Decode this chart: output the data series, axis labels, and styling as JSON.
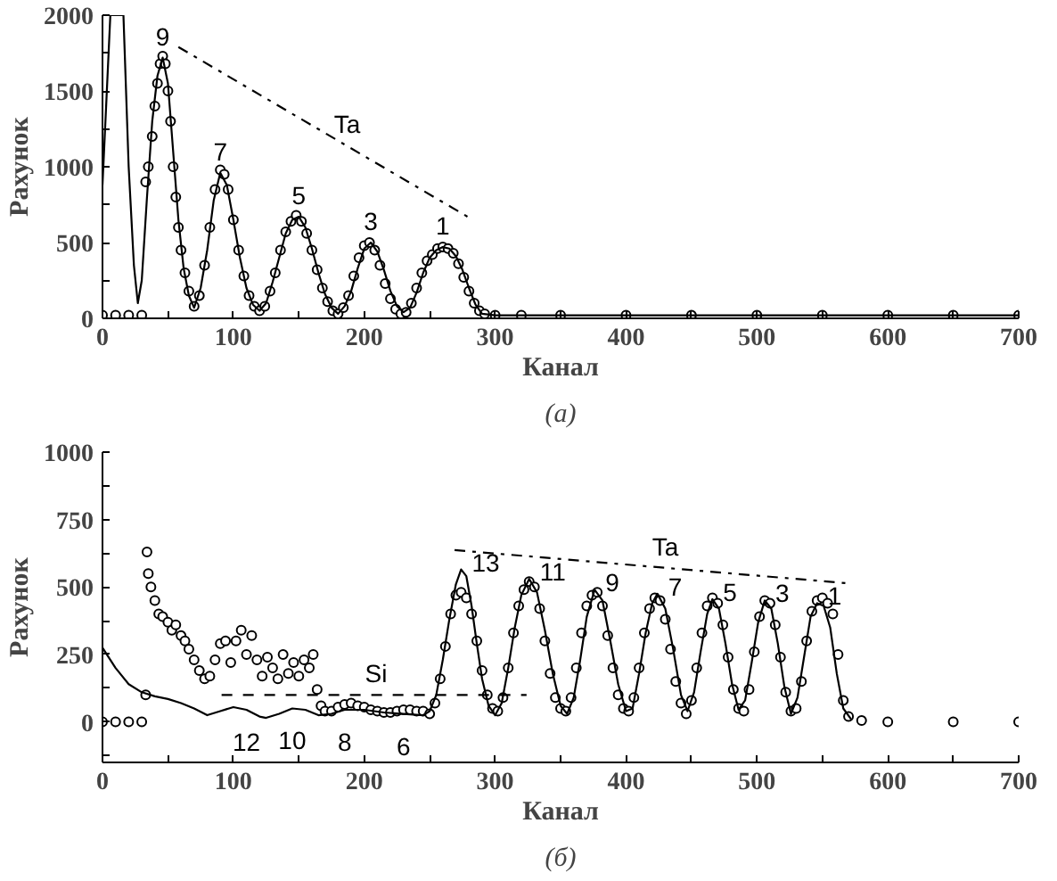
{
  "chart_data": [
    {
      "type": "scatter",
      "xlabel": "Канал",
      "ylabel": "Рахунок",
      "xlim": [
        0,
        700
      ],
      "ylim": [
        0,
        2000
      ],
      "xticks": [
        0,
        {
          "value": 50,
          "label": null
        },
        100,
        {
          "value": 150,
          "label": null
        },
        200,
        {
          "value": 250,
          "label": null
        },
        300,
        {
          "value": 350,
          "label": null
        },
        400,
        {
          "value": 450,
          "label": null
        },
        500,
        {
          "value": 550,
          "label": null
        },
        600,
        {
          "value": 650,
          "label": null
        },
        700
      ],
      "yticks": [
        0,
        {
          "value": 250,
          "label": null
        },
        500,
        {
          "value": 750,
          "label": null
        },
        1000,
        {
          "value": 1250,
          "label": null
        },
        1500,
        {
          "value": 1750,
          "label": null
        },
        2000
      ],
      "series": [
        {
          "marker": "circle",
          "color": "#000000",
          "x": [
            0,
            10,
            20,
            30,
            33,
            35,
            38,
            40,
            42,
            44,
            46,
            48,
            50,
            52,
            54,
            56,
            58,
            60,
            63,
            66,
            70,
            74,
            78,
            82,
            86,
            90,
            93,
            96,
            100,
            104,
            108,
            112,
            116,
            120,
            124,
            128,
            132,
            136,
            140,
            144,
            148,
            152,
            156,
            160,
            164,
            168,
            172,
            176,
            180,
            184,
            188,
            192,
            196,
            200,
            204,
            208,
            212,
            216,
            220,
            224,
            228,
            232,
            236,
            240,
            244,
            248,
            252,
            256,
            260,
            264,
            268,
            272,
            276,
            280,
            284,
            288,
            292,
            300,
            320,
            350,
            400,
            450,
            500,
            550,
            600,
            650,
            700
          ],
          "values": [
            20,
            20,
            20,
            20,
            900,
            1000,
            1200,
            1400,
            1550,
            1680,
            1730,
            1680,
            1500,
            1300,
            1000,
            800,
            600,
            450,
            300,
            180,
            80,
            150,
            350,
            600,
            850,
            980,
            950,
            850,
            650,
            450,
            280,
            150,
            80,
            50,
            80,
            180,
            300,
            450,
            570,
            640,
            680,
            640,
            560,
            450,
            320,
            200,
            110,
            50,
            30,
            70,
            150,
            280,
            400,
            480,
            500,
            450,
            350,
            230,
            130,
            60,
            30,
            40,
            100,
            200,
            300,
            380,
            420,
            460,
            470,
            460,
            430,
            360,
            270,
            180,
            100,
            50,
            30,
            20,
            20,
            20,
            20,
            20,
            20,
            20,
            20,
            20,
            20
          ]
        },
        {
          "type": "line",
          "line_style": "solid",
          "color": "#000000",
          "x": [
            0,
            6,
            16,
            20,
            24,
            27,
            30,
            34,
            38,
            42,
            46,
            50,
            54,
            58,
            62,
            66,
            70,
            75,
            80,
            85,
            90,
            95,
            100,
            105,
            110,
            115,
            120,
            125,
            130,
            135,
            140,
            145,
            150,
            155,
            160,
            165,
            170,
            175,
            180,
            185,
            190,
            195,
            200,
            205,
            210,
            215,
            220,
            225,
            230,
            235,
            240,
            245,
            250,
            255,
            260,
            265,
            270,
            275,
            280,
            285,
            290,
            300,
            700
          ],
          "values": [
            880,
            2000,
            2000,
            1000,
            350,
            100,
            250,
            800,
            1300,
            1600,
            1720,
            1550,
            1100,
            650,
            330,
            150,
            70,
            200,
            450,
            780,
            960,
            880,
            650,
            400,
            200,
            90,
            50,
            100,
            240,
            400,
            560,
            650,
            670,
            600,
            460,
            300,
            160,
            70,
            30,
            80,
            180,
            330,
            460,
            500,
            440,
            320,
            180,
            80,
            40,
            70,
            170,
            300,
            400,
            450,
            470,
            460,
            410,
            320,
            200,
            90,
            30,
            20,
            20
          ]
        },
        {
          "type": "line",
          "line_style": "dashdot",
          "color": "#000000",
          "x": [
            58,
            281
          ],
          "values": [
            1790,
            660
          ]
        }
      ],
      "annotations": [
        {
          "text": "Ta",
          "x": 187,
          "y": 1140
        },
        {
          "text": "9",
          "x": 46,
          "y": 1720
        },
        {
          "text": "7",
          "x": 90,
          "y": 960
        },
        {
          "text": "5",
          "x": 150,
          "y": 670
        },
        {
          "text": "3",
          "x": 205,
          "y": 500
        },
        {
          "text": "1",
          "x": 260,
          "y": 470
        },
        "(а)"
      ]
    },
    {
      "type": "scatter",
      "xlabel": "Канал",
      "ylabel": "Рахунок",
      "xlim": [
        0,
        700
      ],
      "ylim": [
        -150,
        1000
      ],
      "xticks": [
        0,
        {
          "value": 50,
          "label": null
        },
        100,
        {
          "value": 150,
          "label": null
        },
        200,
        {
          "value": 250,
          "label": null
        },
        300,
        {
          "value": 350,
          "label": null
        },
        400,
        {
          "value": 450,
          "label": null
        },
        500,
        {
          "value": 550,
          "label": null
        },
        600,
        {
          "value": 650,
          "label": null
        },
        700
      ],
      "yticks": [
        {
          "value": -125,
          "label": null
        },
        0,
        {
          "value": 125,
          "label": null
        },
        250,
        {
          "value": 375,
          "label": null
        },
        500,
        {
          "value": 625,
          "label": null
        },
        750,
        {
          "value": 875,
          "label": null
        },
        1000
      ],
      "series": [
        {
          "marker": "circle",
          "color": "#000000",
          "x": [
            0,
            10,
            20,
            30,
            33,
            34,
            35,
            37,
            40,
            43,
            46,
            50,
            53,
            56,
            60,
            63,
            66,
            70,
            74,
            78,
            82,
            86,
            90,
            94,
            98,
            102,
            106,
            110,
            114,
            118,
            122,
            126,
            130,
            134,
            138,
            142,
            146,
            150,
            154,
            158,
            161,
            164,
            167,
            170,
            175,
            180,
            185,
            190,
            195,
            200,
            205,
            210,
            215,
            220,
            225,
            230,
            235,
            240,
            245,
            250,
            254,
            258,
            262,
            266,
            270,
            274,
            278,
            282,
            286,
            290,
            294,
            298,
            302,
            306,
            310,
            314,
            318,
            322,
            326,
            330,
            334,
            338,
            342,
            346,
            350,
            354,
            358,
            362,
            366,
            370,
            374,
            378,
            382,
            386,
            390,
            394,
            398,
            402,
            406,
            410,
            414,
            418,
            422,
            426,
            430,
            434,
            438,
            442,
            446,
            450,
            454,
            458,
            462,
            466,
            470,
            474,
            478,
            482,
            486,
            490,
            494,
            498,
            502,
            506,
            510,
            514,
            518,
            522,
            526,
            530,
            534,
            538,
            542,
            546,
            550,
            554,
            558,
            562,
            566,
            570,
            580,
            600,
            650,
            700
          ],
          "values": [
            0,
            0,
            0,
            0,
            100,
            630,
            550,
            500,
            450,
            400,
            390,
            370,
            340,
            360,
            320,
            300,
            270,
            230,
            190,
            160,
            170,
            230,
            290,
            300,
            220,
            300,
            340,
            250,
            320,
            230,
            170,
            240,
            200,
            160,
            250,
            180,
            220,
            170,
            230,
            200,
            250,
            120,
            60,
            40,
            40,
            55,
            65,
            70,
            60,
            55,
            45,
            40,
            35,
            35,
            40,
            45,
            45,
            40,
            40,
            30,
            70,
            160,
            280,
            400,
            470,
            480,
            460,
            400,
            300,
            190,
            100,
            50,
            40,
            90,
            200,
            330,
            430,
            490,
            520,
            500,
            420,
            300,
            180,
            90,
            50,
            40,
            90,
            200,
            330,
            430,
            470,
            480,
            430,
            320,
            200,
            100,
            50,
            40,
            90,
            200,
            330,
            420,
            460,
            450,
            380,
            270,
            150,
            70,
            30,
            80,
            200,
            330,
            430,
            460,
            440,
            360,
            240,
            120,
            50,
            40,
            120,
            260,
            390,
            450,
            440,
            360,
            240,
            110,
            40,
            50,
            150,
            300,
            410,
            450,
            460,
            440,
            400,
            250,
            80,
            20,
            5,
            0,
            0,
            0
          ]
        },
        {
          "type": "line",
          "line_style": "solid",
          "color": "#000000",
          "x": [
            0,
            10,
            20,
            30,
            40,
            50,
            60,
            70,
            80,
            90,
            100,
            110,
            120,
            125,
            135,
            145,
            155,
            165,
            175,
            185,
            200,
            215,
            230,
            245,
            250,
            255,
            260,
            265,
            270,
            274,
            278,
            282,
            286,
            290,
            295,
            300,
            305,
            310,
            315,
            320,
            326,
            332,
            338,
            344,
            350,
            355,
            360,
            365,
            370,
            376,
            382,
            388,
            394,
            400,
            405,
            410,
            415,
            420,
            424,
            430,
            436,
            442,
            447,
            452,
            457,
            462,
            466,
            471,
            476,
            481,
            486,
            491,
            496,
            501,
            506,
            511,
            516,
            521,
            526,
            531,
            536,
            541,
            546,
            551,
            556,
            561,
            566,
            572
          ],
          "values": [
            275,
            200,
            140,
            110,
            95,
            85,
            70,
            50,
            25,
            40,
            55,
            45,
            20,
            15,
            30,
            50,
            45,
            25,
            30,
            45,
            45,
            35,
            30,
            25,
            40,
            100,
            230,
            380,
            510,
            565,
            540,
            430,
            290,
            160,
            60,
            25,
            70,
            200,
            350,
            470,
            530,
            480,
            340,
            180,
            60,
            30,
            90,
            230,
            390,
            490,
            450,
            300,
            140,
            40,
            50,
            180,
            330,
            440,
            475,
            420,
            270,
            100,
            40,
            110,
            260,
            400,
            455,
            420,
            290,
            140,
            45,
            80,
            220,
            370,
            450,
            420,
            290,
            130,
            30,
            90,
            240,
            390,
            440,
            430,
            350,
            180,
            50,
            10
          ]
        },
        {
          "type": "line",
          "line_style": "dashdot",
          "color": "#000000",
          "x": [
            269,
            569
          ],
          "values": [
            637,
            514
          ]
        },
        {
          "type": "line",
          "line_style": "dashed",
          "color": "#000000",
          "x": [
            91,
            324
          ],
          "values": [
            100,
            100
          ]
        }
      ],
      "annotations": [
        {
          "text": "Si",
          "x": 209,
          "y": 100
        },
        {
          "text": "Ta",
          "x": 430,
          "y": 571
        },
        {
          "text": "12",
          "x": 110,
          "y": 45
        },
        {
          "text": "10",
          "x": 145,
          "y": 50
        },
        {
          "text": "8",
          "x": 185,
          "y": 45
        },
        {
          "text": "6",
          "x": 230,
          "y": 30
        },
        {
          "text": "13",
          "x": 274,
          "y": 565
        },
        {
          "text": "11",
          "x": 326,
          "y": 530
        },
        {
          "text": "9",
          "x": 376,
          "y": 490
        },
        {
          "text": "7",
          "x": 424,
          "y": 475
        },
        {
          "text": "5",
          "x": 466,
          "y": 455
        },
        {
          "text": "3",
          "x": 506,
          "y": 450
        },
        {
          "text": "1",
          "x": 546,
          "y": 440
        },
        "(б)"
      ]
    }
  ]
}
